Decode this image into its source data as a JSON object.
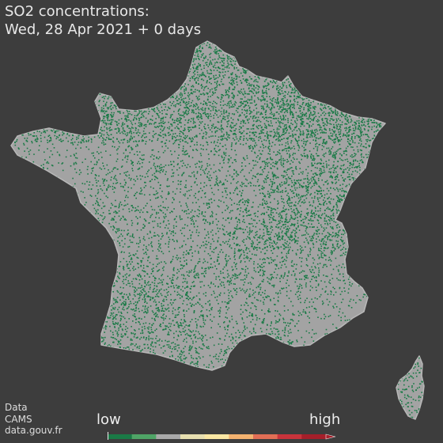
{
  "title": {
    "line1": "SO2 concentrations:",
    "line2": "Wed, 28 Apr 2021 + 0 days"
  },
  "source": {
    "line1": "Data",
    "line2": "CAMS",
    "line3": "data.gouv.fr"
  },
  "legend": {
    "low_label": "low",
    "high_label": "high",
    "colors": [
      "#1a7a46",
      "#4fa466",
      "#a9a9a9",
      "#e7dfb0",
      "#fbe7a3",
      "#f4b26f",
      "#e26e55",
      "#c9333b",
      "#a51f2a"
    ]
  },
  "colors": {
    "background": "#3d3d3d",
    "land": "#a3a3a3",
    "dots": "#1a7a46",
    "outline": "#b8b8b8"
  }
}
